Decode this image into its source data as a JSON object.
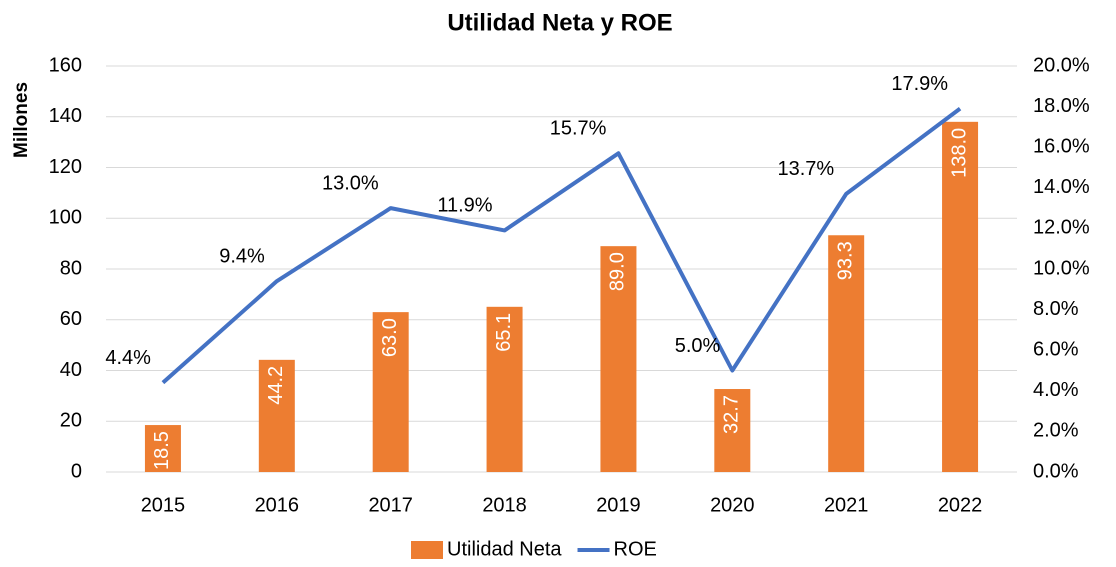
{
  "chart_data": {
    "type": "combo",
    "title": "Utilidad Neta y ROE",
    "y_label": "Millones",
    "categories": [
      "2015",
      "2016",
      "2017",
      "2018",
      "2019",
      "2020",
      "2021",
      "2022"
    ],
    "series": [
      {
        "name": "Utilidad Neta",
        "type": "bar",
        "color": "#ed7d31",
        "values": [
          18.5,
          44.2,
          63.0,
          65.1,
          89.0,
          32.7,
          93.3,
          138.0
        ],
        "value_labels": [
          "18.5",
          "44.2",
          "63.0",
          "65.1",
          "89.0",
          "32.7",
          "93.3",
          "138.0"
        ]
      },
      {
        "name": "ROE",
        "type": "line",
        "axis": "y2",
        "color": "#4472c4",
        "values": [
          4.4,
          9.4,
          13.0,
          11.9,
          15.7,
          5.0,
          13.7,
          17.9
        ],
        "value_labels": [
          "4.4%",
          "9.4%",
          "13.0%",
          "11.9%",
          "15.7%",
          "5.0%",
          "13.7%",
          "17.9%"
        ]
      }
    ],
    "ylim": [
      0,
      160
    ],
    "yticks": [
      0,
      20,
      40,
      60,
      80,
      100,
      120,
      140,
      160
    ],
    "y2lim": [
      0,
      20
    ],
    "y2ticks": [
      {
        "value": 0,
        "label": "0.0%"
      },
      {
        "value": 2,
        "label": "2.0%"
      },
      {
        "value": 4,
        "label": "4.0%"
      },
      {
        "value": 6,
        "label": "6.0%"
      },
      {
        "value": 8,
        "label": "8.0%"
      },
      {
        "value": 10,
        "label": "10.0%"
      },
      {
        "value": 12,
        "label": "12.0%"
      },
      {
        "value": 14,
        "label": "14.0%"
      },
      {
        "value": 16,
        "label": "16.0%"
      },
      {
        "value": 18,
        "label": "18.0%"
      },
      {
        "value": 20,
        "label": "20.0%"
      }
    ],
    "grid": true,
    "legend": "bottom"
  }
}
